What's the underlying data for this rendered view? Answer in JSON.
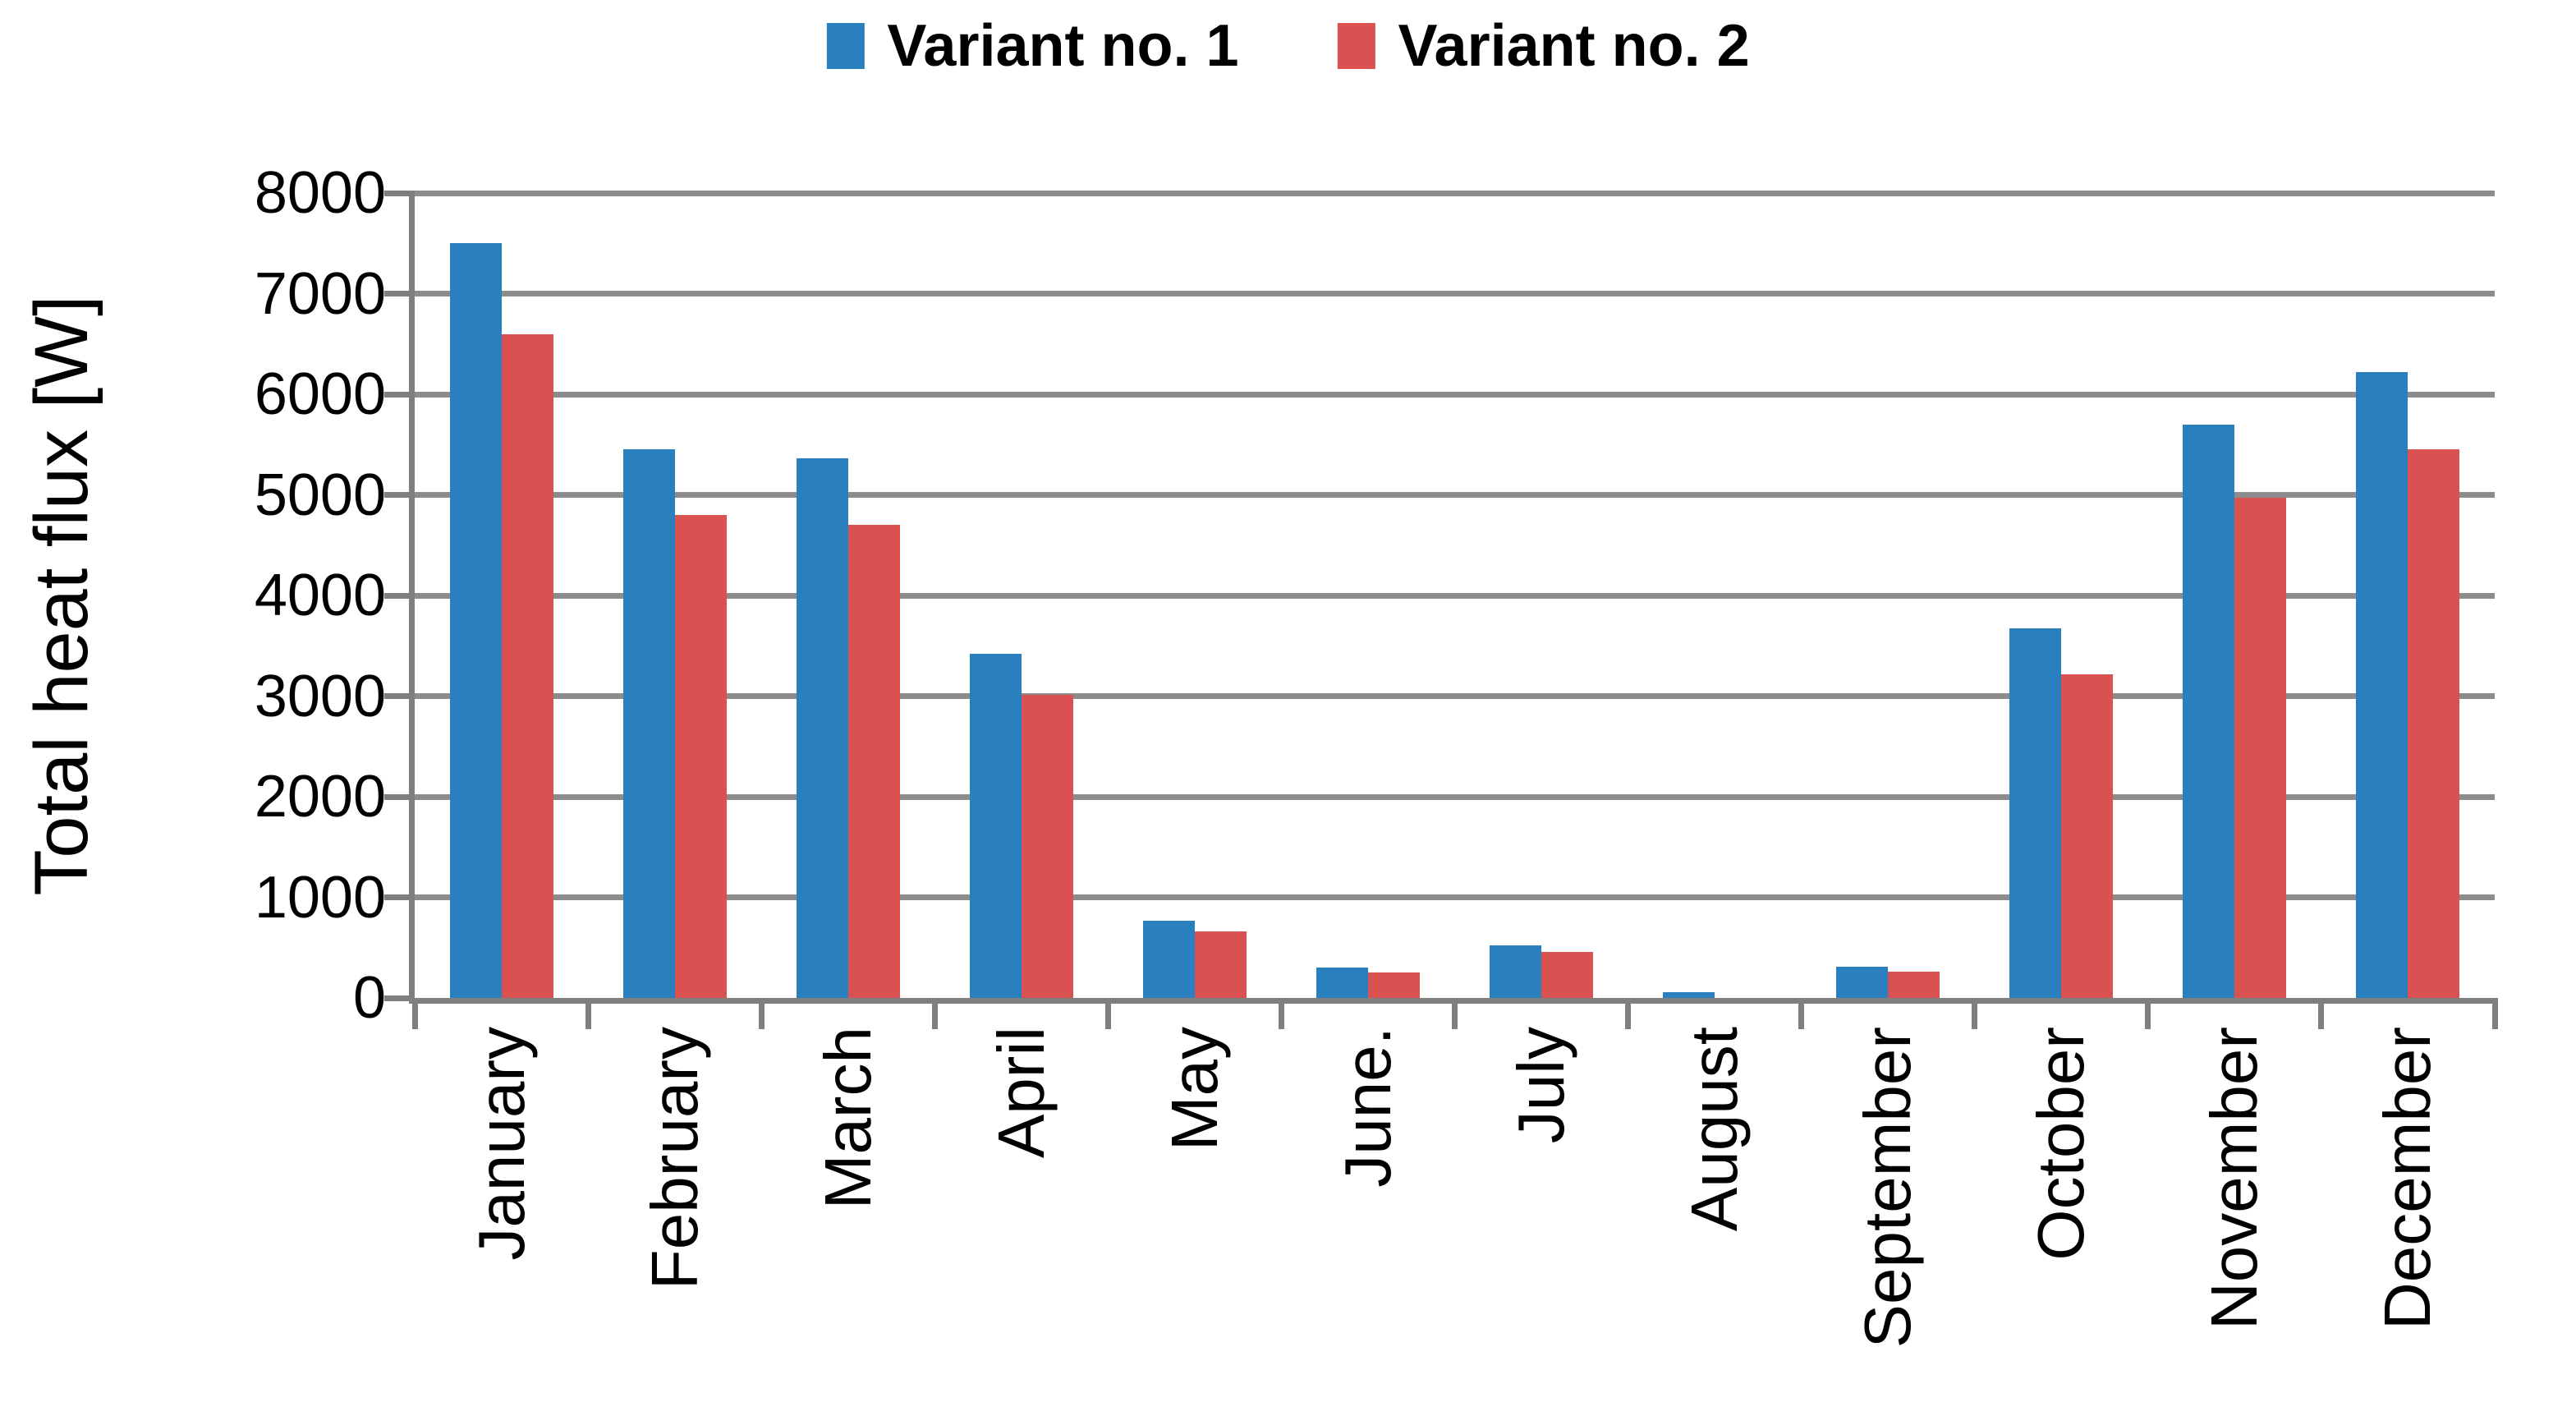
{
  "legend": {
    "items": [
      {
        "label": "Variant no. 1",
        "color": "#2a80be"
      },
      {
        "label": "Variant no. 2",
        "color": "#d95151"
      }
    ]
  },
  "axes": {
    "y_title": "Total heat flux [W]",
    "y_tick_labels": [
      "0",
      "1000",
      "2000",
      "3000",
      "4000",
      "5000",
      "6000",
      "7000",
      "8000"
    ]
  },
  "chart_data": {
    "type": "bar",
    "title": "",
    "categories": [
      "January",
      "February",
      "March",
      "April",
      "May",
      "June.",
      "July",
      "August",
      "September",
      "October",
      "November",
      "December"
    ],
    "series": [
      {
        "name": "Variant no. 1",
        "color": "#2a80be",
        "values": [
          7500,
          5450,
          5360,
          3420,
          770,
          300,
          520,
          60,
          310,
          3670,
          5700,
          6220
        ]
      },
      {
        "name": "Variant no. 2",
        "color": "#d95151",
        "values": [
          6600,
          4800,
          4700,
          3010,
          660,
          250,
          460,
          0,
          260,
          3220,
          4970,
          5450
        ]
      }
    ],
    "xlabel": "",
    "ylabel": "Total heat flux [W]",
    "ylim": [
      0,
      8000
    ],
    "ytick_step": 1000,
    "grid": true,
    "legend_position": "top-center",
    "colors": {
      "gridline": "#8c8c8c",
      "axis": "#7f7f7f",
      "background": "#ffffff",
      "text": "#000000"
    }
  }
}
